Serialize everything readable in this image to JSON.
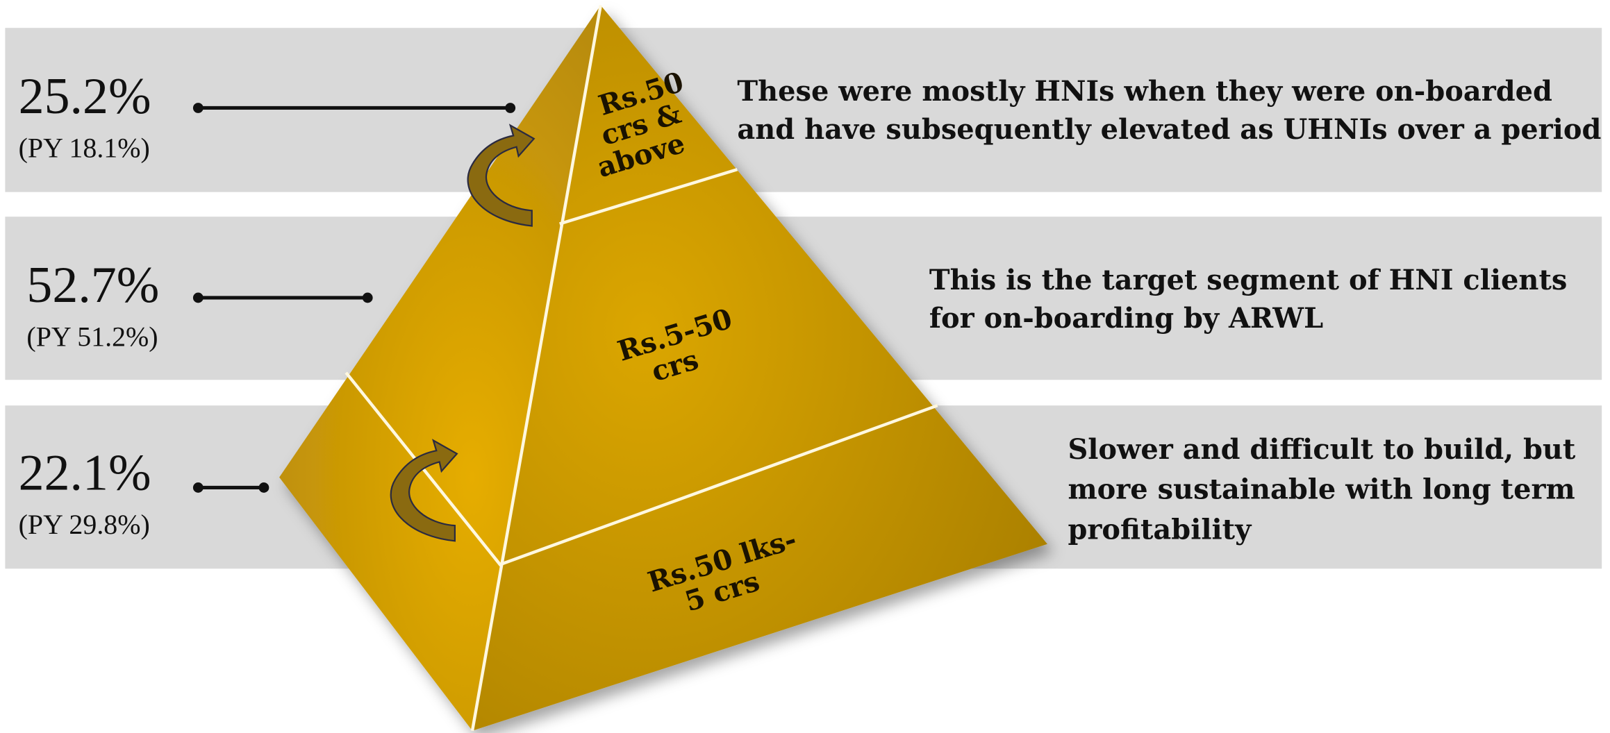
{
  "tiers": [
    {
      "share": "25.2%",
      "previous_year": "(PY 18.1%)",
      "segment": [
        "Rs.50",
        "crs  &",
        "above"
      ],
      "description": [
        "These were mostly HNIs when they were on-boarded",
        "and have subsequently elevated as UHNIs over a period"
      ]
    },
    {
      "share": "52.7%",
      "previous_year": "(PY 51.2%)",
      "segment": [
        "Rs.5-50",
        "crs"
      ],
      "description": [
        "This is the target segment of HNI clients",
        "for on-boarding by ARWL"
      ]
    },
    {
      "share": "22.1%",
      "previous_year": "(PY 29.8%)",
      "segment": [
        "Rs.50 lks-",
        "5 crs"
      ],
      "description": [
        "Slower and difficult to build, but",
        "more sustainable with long term",
        "profitability"
      ]
    }
  ]
}
